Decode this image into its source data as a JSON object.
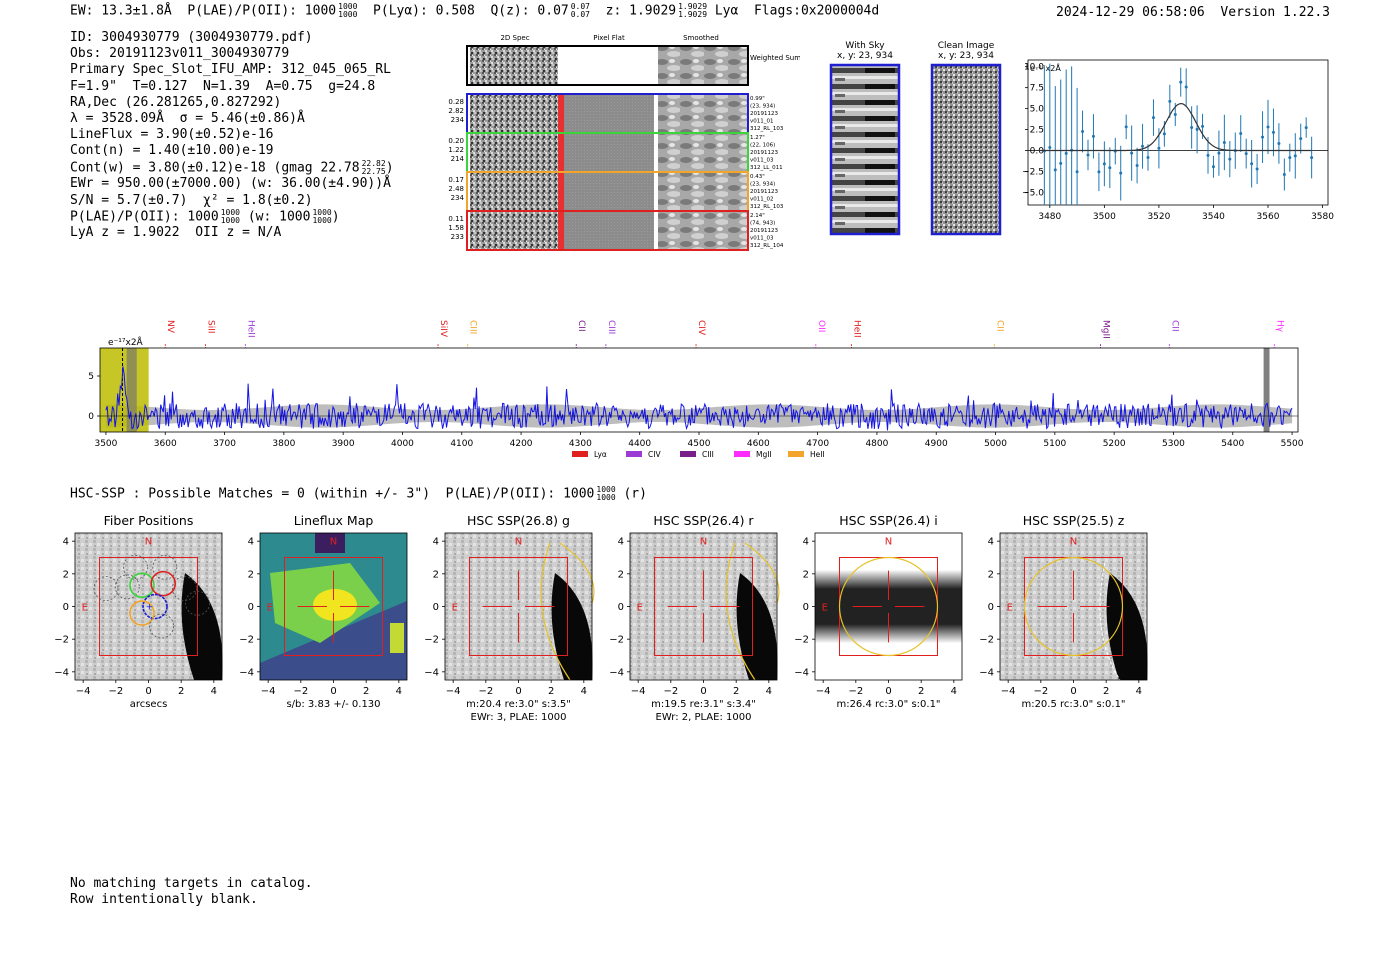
{
  "header": {
    "ew": "EW: 13.3±1.8Å",
    "plae_label": "P(LAE)/P(OII): 1000",
    "plae_hi": "1000",
    "plae_lo": "1000",
    "plya": "P(Lyα): 0.508",
    "qz_label": "Q(z): 0.07",
    "qz_hi": "0.07",
    "qz_lo": "0.07",
    "z_label": "z: 1.9029",
    "z_hi": "1.9029",
    "z_lo": "1.9029",
    "z_line": "Lyα",
    "flags": "Flags:0x2000004d",
    "timestamp": "2024-12-29 06:58:06",
    "version": "Version 1.22.3"
  },
  "info": {
    "id": "ID: 3004930779 (3004930779.pdf)",
    "obs": "Obs: 20191123v011_3004930779",
    "slot": "Primary Spec_Slot_IFU_AMP: 312_045_065_RL",
    "params": "F=1.9\"  T=0.127  N=1.39  A=0.75  g=24.8",
    "radec": "RA,Dec (26.281265,0.827292)",
    "lambda": "λ = 3528.09Å  σ = 5.46(±0.86)Å",
    "lineflux": "LineFlux = 3.90(±0.52)e-16",
    "cont_n": "Cont(n) = 1.40(±10.00)e-19",
    "cont_w": "Cont(w) = 3.80(±0.12)e-18 (gmag 22.78",
    "gmag_hi": "22.82",
    "gmag_lo": "22.75",
    "ewr": "EWr = 950.00(±7000.00) (w: 36.00(±4.90))Å",
    "sn": "S/N = 5.7(±0.7)  χ² = 1.8(±0.2)",
    "plae": "P(LAE)/P(OII): 1000",
    "plae_hi": "1000",
    "plae_lo": "1000",
    "plae_w": "(w: 1000",
    "plae_w_hi": "1000",
    "plae_w_lo": "1000",
    "plae_w_close": ")",
    "lya_z": "LyA z = 1.9022  OII z = N/A"
  },
  "cutouts": {
    "col_titles": [
      "2D Spec",
      "Pixel Flat",
      "Smoothed"
    ],
    "weighted_sum": "Weighted Sum",
    "rows": [
      {
        "left": [
          "0.28",
          "2.82",
          "234"
        ],
        "right": [
          "0.99\"",
          "(23, 934)",
          "20191123",
          "v011_01",
          "312_RL_103"
        ],
        "color": "#1f1fd0"
      },
      {
        "left": [
          "0.20",
          "1.22",
          "214"
        ],
        "right": [
          "1.27\"",
          "(22, 106)",
          "20191123",
          "v011_03",
          "312_LL_011"
        ],
        "color": "#3bd43b"
      },
      {
        "left": [
          "0.17",
          "2.48",
          "234"
        ],
        "right": [
          "0.43\"",
          "(23, 934)",
          "20191123",
          "v011_02",
          "312_RL_103"
        ],
        "color": "#f2a52a"
      },
      {
        "left": [
          "0.11",
          "1.58",
          "233"
        ],
        "right": [
          "2.14\"",
          "(74, 943)",
          "20191123",
          "v011_03",
          "312_RL_104"
        ],
        "color": "#e0201f"
      }
    ]
  },
  "sky": {
    "with_sky_title": "With Sky",
    "with_sky_xy": "x, y: 23, 934",
    "clean_title": "Clean Image",
    "clean_xy": "x, y: 23, 934"
  },
  "fit_plot": {
    "scale_label": "e⁻¹⁷x2Å",
    "yticks": [
      "10.0",
      "7.5",
      "5.0",
      "2.5",
      "0.0",
      "−2.5",
      "−5.0"
    ],
    "xticks": [
      "3480",
      "3500",
      "3520",
      "3540",
      "3560",
      "3580"
    ],
    "ytick_values": [
      10,
      7.5,
      5,
      2.5,
      0,
      -2.5,
      -5
    ],
    "xtick_values": [
      3480,
      3500,
      3520,
      3540,
      3560,
      3580
    ],
    "xlim": [
      3472,
      3582
    ],
    "ylim": [
      -6.5,
      10.8
    ],
    "gauss": {
      "center": 3528.09,
      "sigma": 5.46,
      "amp": 5.6
    }
  },
  "spectrum": {
    "scale_label": "e⁻¹⁷x2Å",
    "yticks": [
      "5",
      "0"
    ],
    "ytick_values": [
      5,
      0
    ],
    "xticks": [
      "3500",
      "3600",
      "3700",
      "3800",
      "3900",
      "4000",
      "4100",
      "4200",
      "4300",
      "4400",
      "4500",
      "4600",
      "4700",
      "4800",
      "4900",
      "5000",
      "5100",
      "5200",
      "5300",
      "5400",
      "5500"
    ],
    "xtick_values": [
      3500,
      3600,
      3700,
      3800,
      3900,
      4000,
      4100,
      4200,
      4300,
      4400,
      4500,
      4600,
      4700,
      4800,
      4900,
      5000,
      5100,
      5200,
      5300,
      5400,
      5500
    ],
    "xlim": [
      3490,
      5510
    ],
    "ylim": [
      -2,
      8.5
    ],
    "lines": [
      {
        "label": "NV",
        "wave": 3600,
        "color": "#e0201f"
      },
      {
        "label": "SiII",
        "wave": 3668,
        "color": "#e0201f"
      },
      {
        "label": "HeII",
        "wave": 3735,
        "color": "#9b3bd4"
      },
      {
        "label": "SiIV",
        "wave": 4060,
        "color": "#e0201f"
      },
      {
        "label": "CIII",
        "wave": 4110,
        "color": "#f2a52a"
      },
      {
        "label": "CII",
        "wave": 4293,
        "color": "#7a1f8a"
      },
      {
        "label": "CIII",
        "wave": 4343,
        "color": "#9b3bd4"
      },
      {
        "label": "CIV",
        "wave": 4495,
        "color": "#e0201f"
      },
      {
        "label": "OII",
        "wave": 4697,
        "color": "#ff2bff"
      },
      {
        "label": "HeII",
        "wave": 4757,
        "color": "#e0201f"
      },
      {
        "label": "CII",
        "wave": 4998,
        "color": "#f2a52a"
      },
      {
        "label": "MgII",
        "wave": 5177,
        "color": "#7a1f8a"
      },
      {
        "label": "CII",
        "wave": 5293,
        "color": "#9b3bd4"
      },
      {
        "label": "Hγ",
        "wave": 5470,
        "color": "#ff2bff"
      }
    ],
    "legend": [
      {
        "label": "Lyα",
        "color": "#e0201f"
      },
      {
        "label": "CIV",
        "color": "#9b3bd4"
      },
      {
        "label": "CIII",
        "color": "#7a1f8a"
      },
      {
        "label": "MgII",
        "color": "#ff2bff"
      },
      {
        "label": "HeII",
        "color": "#f2a52a"
      }
    ]
  },
  "hsc": {
    "line_prefix": "HSC-SSP : Possible Matches = 0 (within +/- 3\")  P(LAE)/P(OII): 1000",
    "line_hi": "1000",
    "line_lo": "1000",
    "line_suffix": "(r)",
    "panels": [
      {
        "title": "Fiber Positions",
        "caption1": "arcsecs",
        "caption2": ""
      },
      {
        "title": "Lineflux Map",
        "caption1": "s/b: 3.83 +/- 0.130",
        "caption2": ""
      },
      {
        "title": "HSC SSP(26.8) g",
        "caption1": "m:20.4  re:3.0\"  s:3.5\"",
        "caption2": "EWr: 3, PLAE: 1000"
      },
      {
        "title": "HSC SSP(26.4) r",
        "caption1": "m:19.5  re:3.1\"  s:3.4\"",
        "caption2": "EWr: 2, PLAE: 1000"
      },
      {
        "title": "HSC SSP(26.4) i",
        "caption1": "m:26.4 rc:3.0\"  s:0.1\"",
        "caption2": ""
      },
      {
        "title": "HSC SSP(25.5) z",
        "caption1": "m:20.5 rc:3.0\"  s:0.1\"",
        "caption2": ""
      }
    ],
    "yticks": [
      "4",
      "2",
      "0",
      "−2",
      "−4"
    ],
    "xticks": [
      "−4",
      "−2",
      "0",
      "2",
      "4"
    ],
    "north": "N",
    "east": "E"
  },
  "footer": {
    "line1": "No matching targets in catalog.",
    "line2": "Row intentionally blank."
  }
}
